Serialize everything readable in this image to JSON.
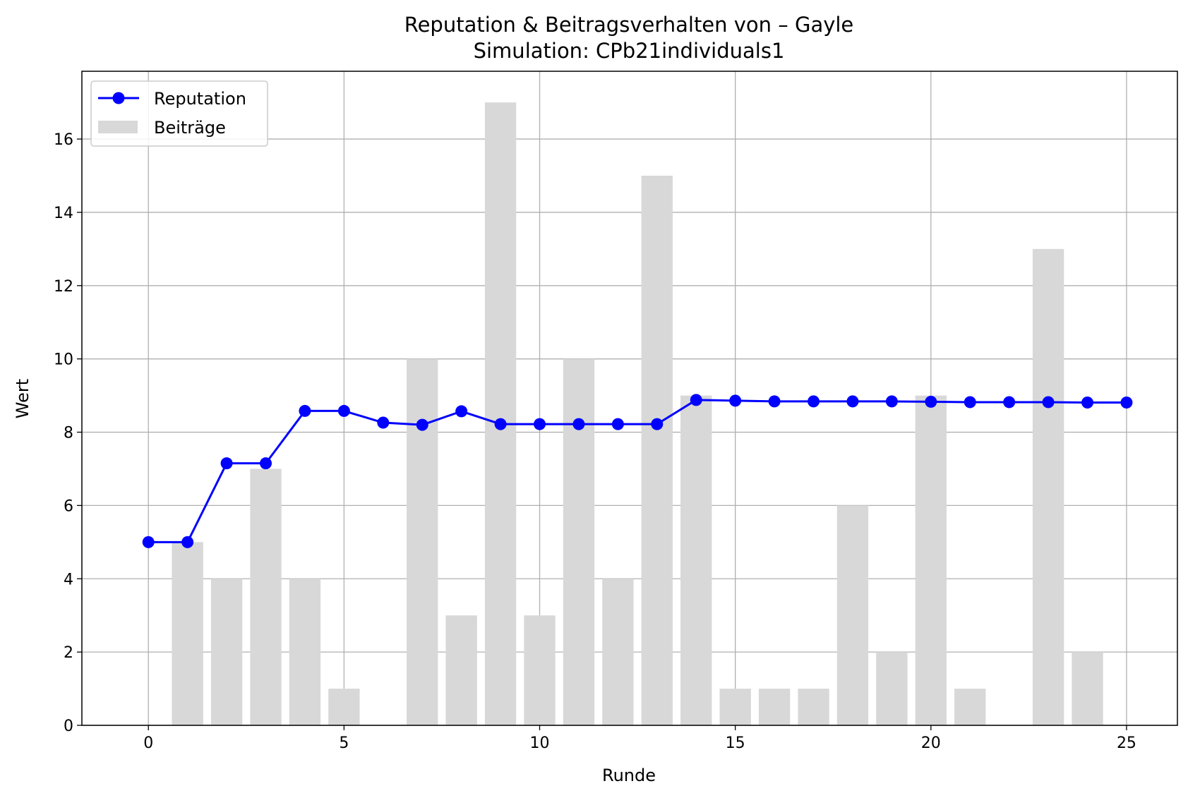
{
  "chart_data": {
    "type": "bar+line",
    "title": "Reputation & Beitragsverhalten von – Gayle",
    "subtitle": "Simulation: CPb21individuals1",
    "xlabel": "Runde",
    "ylabel": "Wert",
    "xlim": [
      -1.7,
      26.3
    ],
    "ylim": [
      0,
      17.85
    ],
    "xticks": [
      0,
      5,
      10,
      15,
      20,
      25
    ],
    "yticks": [
      0,
      2,
      4,
      6,
      8,
      10,
      12,
      14,
      16
    ],
    "grid": true,
    "legend": {
      "placement": "top-left",
      "entries": [
        "Reputation",
        "Beiträge"
      ]
    },
    "series": [
      {
        "name": "Reputation",
        "kind": "line",
        "color": "#0000ff",
        "marker": "circle",
        "x": [
          0,
          1,
          2,
          3,
          4,
          5,
          6,
          7,
          8,
          9,
          10,
          11,
          12,
          13,
          14,
          15,
          16,
          17,
          18,
          19,
          20,
          21,
          22,
          23,
          24,
          25
        ],
        "values": [
          5.0,
          5.0,
          7.15,
          7.15,
          8.58,
          8.58,
          8.26,
          8.2,
          8.57,
          8.22,
          8.22,
          8.22,
          8.22,
          8.22,
          8.88,
          8.86,
          8.84,
          8.84,
          8.84,
          8.84,
          8.83,
          8.82,
          8.82,
          8.82,
          8.81,
          8.81
        ]
      },
      {
        "name": "Beiträge",
        "kind": "bar",
        "color": "#d8d8d8",
        "x": [
          0,
          1,
          2,
          3,
          4,
          5,
          6,
          7,
          8,
          9,
          10,
          11,
          12,
          13,
          14,
          15,
          16,
          17,
          18,
          19,
          20,
          21,
          22,
          23,
          24,
          25
        ],
        "values": [
          0,
          5,
          4,
          7,
          4,
          1,
          0,
          10,
          3,
          17,
          3,
          10,
          4,
          15,
          9,
          1,
          1,
          1,
          6,
          2,
          9,
          1,
          0,
          13,
          2,
          0
        ]
      }
    ]
  }
}
